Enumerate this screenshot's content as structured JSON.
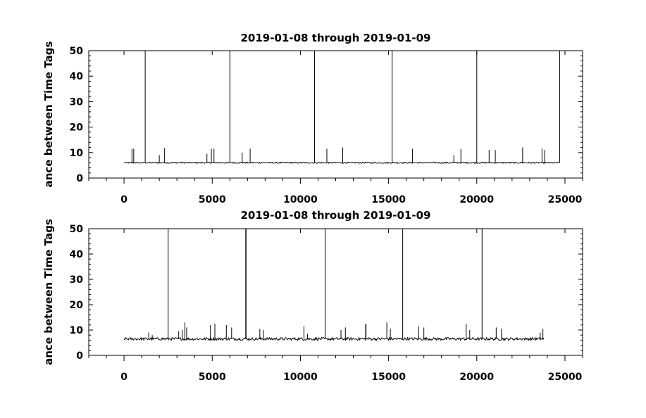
{
  "chart_data": [
    {
      "type": "line",
      "title": "2019-01-08 through 2019-01-09",
      "ylabel": "ance between Time Tags",
      "xlabel": "",
      "xlim": [
        -2000,
        26000
      ],
      "ylim": [
        0,
        50
      ],
      "xticks": [
        0,
        5000,
        10000,
        15000,
        20000,
        25000
      ],
      "yticks": [
        0,
        10,
        20,
        30,
        40,
        50
      ],
      "baseline": 6,
      "x_extent": [
        0,
        24700
      ],
      "series": [
        {
          "spikes": [
            [
              450,
              11.5
            ],
            [
              550,
              11.5
            ],
            [
              2000,
              9
            ],
            [
              2300,
              11.8
            ],
            [
              1200,
              50
            ],
            [
              4700,
              9.5
            ],
            [
              4950,
              11.5
            ],
            [
              5100,
              11.5
            ],
            [
              6000,
              50
            ],
            [
              6700,
              10
            ],
            [
              7150,
              11.5
            ],
            [
              10800,
              50
            ],
            [
              11500,
              11.5
            ],
            [
              12400,
              12
            ],
            [
              15200,
              50
            ],
            [
              16350,
              11.5
            ],
            [
              18700,
              9
            ],
            [
              19100,
              11.5
            ],
            [
              20000,
              50
            ],
            [
              20700,
              11
            ],
            [
              21050,
              11
            ],
            [
              22600,
              12
            ],
            [
              23700,
              11.5
            ],
            [
              23850,
              11
            ],
            [
              24700,
              50
            ]
          ]
        }
      ]
    },
    {
      "type": "line",
      "title": "2019-01-08 through 2019-01-09",
      "ylabel": "ance between Time Tags",
      "xlabel": "",
      "xlim": [
        -2000,
        26000
      ],
      "ylim": [
        0,
        50
      ],
      "xticks": [
        0,
        5000,
        10000,
        15000,
        20000,
        25000
      ],
      "yticks": [
        0,
        10,
        20,
        30,
        40,
        50
      ],
      "baseline": 6.5,
      "x_extent": [
        0,
        23800
      ],
      "series": [
        {
          "spikes": [
            [
              1400,
              9
            ],
            [
              1600,
              8
            ],
            [
              2500,
              50
            ],
            [
              3100,
              9.5
            ],
            [
              3300,
              10
            ],
            [
              3450,
              13
            ],
            [
              3550,
              11
            ],
            [
              4900,
              12
            ],
            [
              5150,
              12.5
            ],
            [
              5800,
              12
            ],
            [
              6100,
              11
            ],
            [
              6900,
              50
            ],
            [
              6920,
              50
            ],
            [
              7700,
              10.5
            ],
            [
              7900,
              10
            ],
            [
              10200,
              11.5
            ],
            [
              10400,
              8.5
            ],
            [
              11400,
              50
            ],
            [
              12300,
              10
            ],
            [
              12550,
              11
            ],
            [
              13700,
              12.5
            ],
            [
              13720,
              12.5
            ],
            [
              14900,
              13
            ],
            [
              15100,
              10.5
            ],
            [
              15800,
              50
            ],
            [
              16700,
              11.5
            ],
            [
              17000,
              11
            ],
            [
              19400,
              12.5
            ],
            [
              19600,
              10
            ],
            [
              20300,
              50
            ],
            [
              21100,
              11
            ],
            [
              21400,
              10.5
            ],
            [
              23600,
              9
            ],
            [
              23750,
              10.5
            ]
          ]
        }
      ]
    }
  ]
}
